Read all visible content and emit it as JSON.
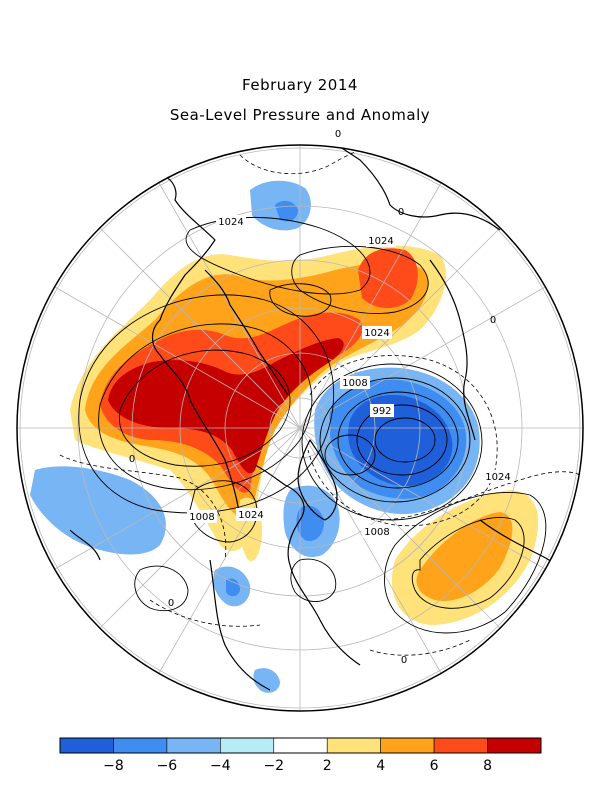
{
  "title": "February 2014",
  "subtitle": "Sea-Level Pressure and Anomaly",
  "colors": {
    "bins": [
      "#1f5fd9",
      "#3f8df0",
      "#78b5f5",
      "#b7ecf7",
      "#ffffff",
      "#ffe27a",
      "#ffa31a",
      "#ff4a1a",
      "#c40000"
    ],
    "coast": "#000000",
    "grid": "#b8b8b8"
  },
  "colorbar": {
    "labels": [
      "−8",
      "−6",
      "−4",
      "−2",
      "2",
      "4",
      "6",
      "8"
    ]
  },
  "contour_labels": {
    "l1024_pacific": "1024",
    "l1024_siberia": "1024",
    "l1024_asia": "1024",
    "l1008_asia": "1008",
    "l992": "992",
    "l1024_atlantic": "1024",
    "l1008_pacific": "1008",
    "l1024_america": "1024",
    "l1008_labrador": "1008",
    "zero_a": "0",
    "zero_b": "0",
    "zero_c": "0",
    "zero_d": "0",
    "zero_e": "0",
    "zero_f": "0"
  }
}
